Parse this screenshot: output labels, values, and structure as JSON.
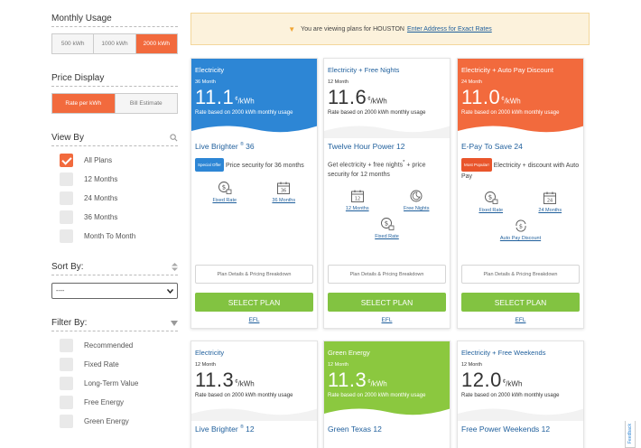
{
  "sidebar": {
    "usage": {
      "title": "Monthly Usage",
      "options": [
        "500 kWh",
        "1000 kWh",
        "2000 kWh"
      ],
      "active": 2
    },
    "price_display": {
      "title": "Price Display",
      "options": [
        "Rate per kWh",
        "Bill Estimate"
      ],
      "active": 0
    },
    "view_by": {
      "title": "View By",
      "items": [
        {
          "label": "All Plans",
          "checked": true
        },
        {
          "label": "12 Months",
          "checked": false
        },
        {
          "label": "24 Months",
          "checked": false
        },
        {
          "label": "36 Months",
          "checked": false
        },
        {
          "label": "Month To Month",
          "checked": false
        }
      ]
    },
    "sort_by": {
      "title": "Sort By:",
      "value": "----"
    },
    "filter_by": {
      "title": "Filter By:",
      "items": [
        {
          "label": "Recommended"
        },
        {
          "label": "Fixed Rate"
        },
        {
          "label": "Long-Term Value"
        },
        {
          "label": "Free Energy"
        },
        {
          "label": "Green Energy"
        }
      ]
    }
  },
  "banner": {
    "text": "You are viewing plans for",
    "city": "HOUSTON",
    "link": "Enter Address for Exact Rates"
  },
  "common": {
    "details": "Plan Details & Pricing Breakdown",
    "select": "SELECT PLAN",
    "efl": "EFL",
    "cent": "¢",
    "unit": "/kWh",
    "rate_note": "Rate based on 2000 kWh monthly usage",
    "feedback": "Feedback"
  },
  "cards": [
    {
      "category": "Electricity",
      "term": "36 Month",
      "price": "11.1",
      "name": "Live Brighter",
      "name_sup": "®",
      "name_suffix": "36",
      "badge": "Special Offer",
      "desc": "Price security for 36 months",
      "features": [
        "Fixed Rate",
        "36 Months"
      ]
    },
    {
      "category": "Electricity + Free Nights",
      "term": "12 Month",
      "price": "11.6",
      "name": "Twelve Hour Power 12",
      "desc": "Get electricity + free nights",
      "desc_sup": "*",
      "desc_tail": "+ price security for 12 months",
      "features": [
        "12 Months",
        "Free Nights",
        "Fixed Rate"
      ]
    },
    {
      "category": "Electricity + Auto Pay Discount",
      "term": "24 Month",
      "price": "11.0",
      "name": "E-Pay To Save 24",
      "badge": "Most Popular!",
      "desc": "Electricity + discount with Auto Pay",
      "features": [
        "Fixed Rate",
        "24 Months",
        "Auto Pay Discount"
      ]
    },
    {
      "category": "Electricity",
      "term": "12 Month",
      "price": "11.3",
      "name": "Live Brighter",
      "name_sup": "®",
      "name_suffix": "12"
    },
    {
      "category": "Green Energy",
      "term": "12 Month",
      "price": "11.3",
      "name": "Green Texas 12"
    },
    {
      "category": "Electricity + Free Weekends",
      "term": "12 Month",
      "price": "12.0",
      "name": "Free Power Weekends 12"
    }
  ],
  "colors": {
    "accent": "#f26a3d",
    "blue": "#2d86d5",
    "green": "#82c341",
    "link": "#1f5f9c"
  },
  "icons": [
    "map-pin-icon",
    "search-icon",
    "sort-arrows-icon",
    "filter-funnel-icon",
    "dollar-lock-icon",
    "calendar-icon",
    "moon-clock-icon",
    "autopay-dollar-icon"
  ]
}
